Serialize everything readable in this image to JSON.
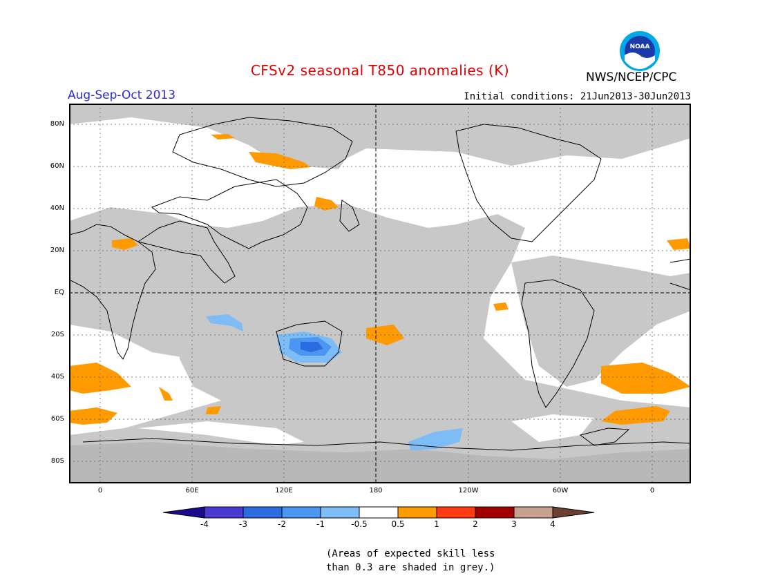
{
  "title": "CFSv2 seasonal T850 anomalies (K)",
  "organization": "NWS/NCEP/CPC",
  "logo_text": "NOAA",
  "season_label": "Aug-Sep-Oct 2013",
  "initial_conditions": "Initial conditions: 21Jun2013-30Jun2013",
  "lat_labels": [
    "80N",
    "60N",
    "40N",
    "20N",
    "EQ",
    "20S",
    "40S",
    "60S",
    "80S"
  ],
  "lon_labels": [
    "0",
    "60E",
    "120E",
    "180",
    "120W",
    "60W",
    "0"
  ],
  "colorbar": {
    "ticks": [
      "-4",
      "-3",
      "-2",
      "-1",
      "-0.5",
      "0.5",
      "1",
      "2",
      "3",
      "4"
    ],
    "colors": [
      "#1a0a8c",
      "#4a3bd0",
      "#2b6ce0",
      "#4a96f0",
      "#7ebcf5",
      "#ffffff",
      "#ff9a00",
      "#ff3b12",
      "#a00000",
      "#c8a090",
      "#6b4030"
    ]
  },
  "colors": {
    "skill_grey": "#c8c8c8",
    "warm": "#ff9a00",
    "cool_light": "#7ebcf5",
    "cool_mid": "#4a96f0",
    "cool_dark": "#2b6ce0"
  },
  "note_line1": "(Areas of expected skill less",
  "note_line2": "than 0.3 are shaded in grey.)"
}
